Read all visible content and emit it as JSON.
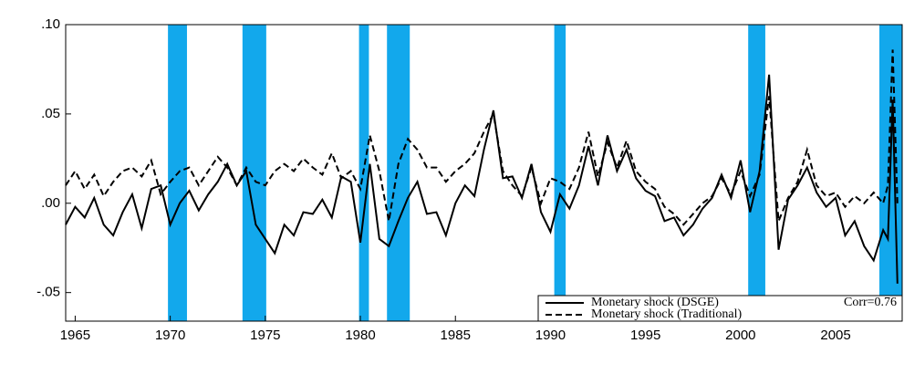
{
  "chart_data": {
    "type": "line",
    "x": [
      1964.5,
      1965,
      1965.5,
      1966,
      1966.5,
      1967,
      1967.5,
      1968,
      1968.5,
      1969,
      1969.5,
      1970,
      1970.5,
      1971,
      1971.5,
      1972,
      1972.5,
      1973,
      1973.5,
      1974,
      1974.5,
      1975,
      1975.5,
      1976,
      1976.5,
      1977,
      1977.5,
      1978,
      1978.5,
      1979,
      1979.5,
      1980,
      1980.5,
      1981,
      1981.5,
      1982,
      1982.5,
      1983,
      1983.5,
      1984,
      1984.5,
      1985,
      1985.5,
      1986,
      1986.5,
      1987,
      1987.5,
      1988,
      1988.5,
      1989,
      1989.5,
      1990,
      1990.5,
      1991,
      1991.5,
      1992,
      1992.5,
      1993,
      1993.5,
      1994,
      1994.5,
      1995,
      1995.5,
      1996,
      1996.5,
      1997,
      1997.5,
      1998,
      1998.5,
      1999,
      1999.5,
      2000,
      2000.5,
      2001,
      2001.5,
      2002,
      2002.5,
      2003,
      2003.5,
      2004,
      2004.5,
      2005,
      2005.5,
      2006,
      2006.5,
      2007,
      2007.5,
      2007.75,
      2008,
      2008.25
    ],
    "series": [
      {
        "name": "Monetary shock (DSGE)",
        "color": "#000000",
        "dash": "solid",
        "values": [
          -0.012,
          -0.002,
          -0.008,
          0.003,
          -0.012,
          -0.018,
          -0.005,
          0.005,
          -0.014,
          0.008,
          0.01,
          -0.012,
          0.0,
          0.007,
          -0.004,
          0.005,
          0.012,
          0.022,
          0.01,
          0.018,
          -0.012,
          -0.02,
          -0.028,
          -0.012,
          -0.018,
          -0.005,
          -0.006,
          0.002,
          -0.008,
          0.015,
          0.012,
          -0.022,
          0.022,
          -0.02,
          -0.024,
          -0.01,
          0.003,
          0.012,
          -0.006,
          -0.005,
          -0.018,
          0.0,
          0.01,
          0.004,
          0.03,
          0.052,
          0.014,
          0.015,
          0.003,
          0.022,
          -0.005,
          -0.016,
          0.005,
          -0.003,
          0.01,
          0.032,
          0.01,
          0.038,
          0.018,
          0.03,
          0.014,
          0.007,
          0.004,
          -0.01,
          -0.008,
          -0.018,
          -0.012,
          -0.003,
          0.003,
          0.016,
          0.003,
          0.024,
          -0.005,
          0.018,
          0.072,
          -0.026,
          0.002,
          0.01,
          0.02,
          0.006,
          -0.002,
          0.003,
          -0.018,
          -0.01,
          -0.024,
          -0.032,
          -0.015,
          -0.02,
          0.058,
          -0.045
        ]
      },
      {
        "name": "Monetary shock (Traditional)",
        "color": "#000000",
        "dash": "dashed",
        "values": [
          0.01,
          0.018,
          0.008,
          0.016,
          0.004,
          0.012,
          0.018,
          0.02,
          0.015,
          0.024,
          0.005,
          0.012,
          0.018,
          0.02,
          0.01,
          0.018,
          0.026,
          0.02,
          0.01,
          0.02,
          0.012,
          0.01,
          0.018,
          0.022,
          0.018,
          0.025,
          0.02,
          0.016,
          0.028,
          0.014,
          0.018,
          0.008,
          0.038,
          0.018,
          -0.01,
          0.022,
          0.036,
          0.03,
          0.02,
          0.02,
          0.012,
          0.018,
          0.022,
          0.028,
          0.04,
          0.05,
          0.018,
          0.01,
          0.004,
          0.02,
          0.0,
          0.014,
          0.012,
          0.008,
          0.02,
          0.04,
          0.015,
          0.034,
          0.02,
          0.035,
          0.018,
          0.012,
          0.008,
          -0.002,
          -0.006,
          -0.012,
          -0.006,
          0.0,
          0.004,
          0.014,
          0.005,
          0.018,
          0.004,
          0.016,
          0.06,
          -0.01,
          0.003,
          0.012,
          0.03,
          0.01,
          0.004,
          0.006,
          -0.002,
          0.004,
          0.0,
          0.006,
          0.0,
          0.01,
          0.086,
          0.0
        ]
      }
    ],
    "recessions": [
      [
        1969.88,
        1970.88
      ],
      [
        1973.8,
        1975.05
      ],
      [
        1979.93,
        1980.45
      ],
      [
        1981.4,
        1982.6
      ],
      [
        1990.2,
        1990.8
      ],
      [
        2000.4,
        2001.3
      ],
      [
        2007.3,
        2008.5
      ]
    ],
    "recession_color": "#12a8ec",
    "annotation": "Corr=0.76",
    "legend": "lower right",
    "xlim": [
      1964.5,
      2008.5
    ],
    "xticks": [
      1965,
      1970,
      1975,
      1980,
      1985,
      1990,
      1995,
      2000,
      2005
    ],
    "ylim": [
      -0.066,
      0.1
    ],
    "yticks": [
      {
        "value": -0.05,
        "label": "-.05"
      },
      {
        "value": 0.0,
        "label": ".00"
      },
      {
        "value": 0.05,
        "label": ".05"
      },
      {
        "value": 0.1,
        "label": ".10"
      }
    ]
  }
}
